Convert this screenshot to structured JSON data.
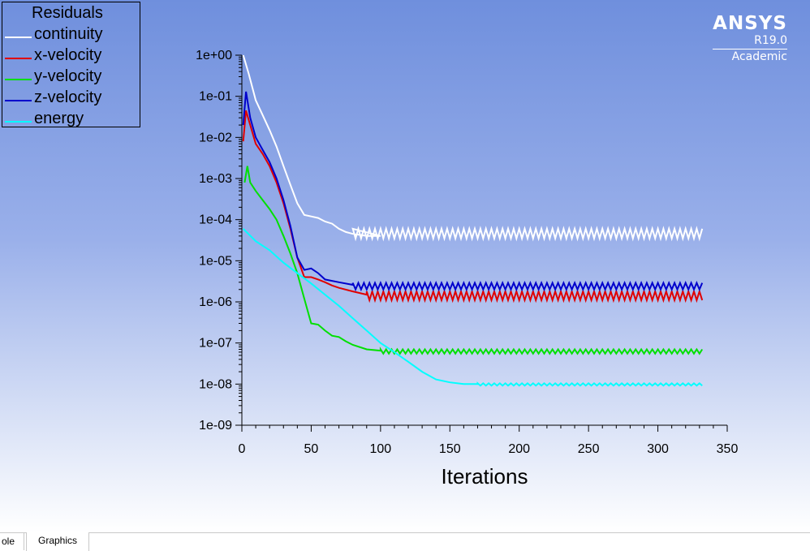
{
  "chart_data": {
    "type": "line",
    "title": "",
    "xlabel": "Iterations",
    "ylabel": "",
    "xlim": [
      0,
      350
    ],
    "ylim": [
      1e-09,
      1
    ],
    "yscale": "log",
    "x_ticks": [
      0,
      50,
      100,
      150,
      200,
      250,
      300,
      350
    ],
    "y_ticks": [
      "1e+00",
      "1e-01",
      "1e-02",
      "1e-03",
      "1e-04",
      "1e-05",
      "1e-06",
      "1e-07",
      "1e-08",
      "1e-09"
    ],
    "legend_title": "Residuals",
    "legend_position": "top-left",
    "grid": false,
    "series": [
      {
        "name": "continuity",
        "color": "#ffffff",
        "points": [
          [
            1,
            1.0
          ],
          [
            5,
            0.35
          ],
          [
            10,
            0.08
          ],
          [
            15,
            0.035
          ],
          [
            20,
            0.015
          ],
          [
            25,
            0.006
          ],
          [
            30,
            0.002
          ],
          [
            35,
            0.0007
          ],
          [
            40,
            0.00025
          ],
          [
            45,
            0.00013
          ],
          [
            50,
            0.00012
          ],
          [
            55,
            0.00011
          ],
          [
            60,
            9e-05
          ],
          [
            65,
            8e-05
          ],
          [
            70,
            6e-05
          ],
          [
            75,
            5e-05
          ],
          [
            80,
            4.5e-05
          ],
          [
            90,
            4e-05
          ],
          [
            100,
            4e-05
          ]
        ],
        "oscillation": {
          "from": 80,
          "to": 333,
          "period": 4,
          "low": 3.5e-05,
          "high": 6e-05
        }
      },
      {
        "name": "x-velocity",
        "color": "#e00000",
        "points": [
          [
            1,
            0.008
          ],
          [
            3,
            0.045
          ],
          [
            6,
            0.02
          ],
          [
            10,
            0.007
          ],
          [
            15,
            0.004
          ],
          [
            20,
            0.002
          ],
          [
            25,
            0.0008
          ],
          [
            30,
            0.00025
          ],
          [
            35,
            6e-05
          ],
          [
            40,
            1.2e-05
          ],
          [
            45,
            4e-06
          ],
          [
            50,
            4e-06
          ],
          [
            55,
            3.5e-06
          ],
          [
            60,
            3e-06
          ],
          [
            65,
            2.5e-06
          ],
          [
            70,
            2.2e-06
          ],
          [
            80,
            1.8e-06
          ],
          [
            90,
            1.5e-06
          ]
        ],
        "oscillation": {
          "from": 90,
          "to": 333,
          "period": 4,
          "low": 1.1e-06,
          "high": 1.8e-06
        }
      },
      {
        "name": "y-velocity",
        "color": "#00e000",
        "points": [
          [
            2,
            0.0008
          ],
          [
            4,
            0.002
          ],
          [
            6,
            0.0008
          ],
          [
            10,
            0.0005
          ],
          [
            15,
            0.0003
          ],
          [
            20,
            0.00018
          ],
          [
            25,
            0.0001
          ],
          [
            30,
            4e-05
          ],
          [
            35,
            1.5e-05
          ],
          [
            40,
            5e-06
          ],
          [
            45,
            1.2e-06
          ],
          [
            50,
            3e-07
          ],
          [
            55,
            2.8e-07
          ],
          [
            60,
            2e-07
          ],
          [
            65,
            1.5e-07
          ],
          [
            70,
            1.4e-07
          ],
          [
            75,
            1.1e-07
          ],
          [
            80,
            9e-08
          ],
          [
            90,
            7e-08
          ],
          [
            100,
            6.5e-08
          ]
        ],
        "oscillation": {
          "from": 100,
          "to": 333,
          "period": 4,
          "low": 5.5e-08,
          "high": 7e-08
        }
      },
      {
        "name": "z-velocity",
        "color": "#0000cc",
        "points": [
          [
            1,
            0.02
          ],
          [
            3,
            0.13
          ],
          [
            6,
            0.03
          ],
          [
            10,
            0.01
          ],
          [
            15,
            0.005
          ],
          [
            20,
            0.0025
          ],
          [
            25,
            0.001
          ],
          [
            30,
            0.0003
          ],
          [
            35,
            7e-05
          ],
          [
            40,
            1.2e-05
          ],
          [
            45,
            6e-06
          ],
          [
            50,
            6.5e-06
          ],
          [
            55,
            5e-06
          ],
          [
            60,
            3.5e-06
          ],
          [
            70,
            3e-06
          ],
          [
            80,
            2.6e-06
          ]
        ],
        "oscillation": {
          "from": 80,
          "to": 333,
          "period": 4,
          "low": 2e-06,
          "high": 2.9e-06
        }
      },
      {
        "name": "energy",
        "color": "#00ffff",
        "points": [
          [
            1,
            6e-05
          ],
          [
            10,
            3e-05
          ],
          [
            20,
            1.8e-05
          ],
          [
            30,
            9e-06
          ],
          [
            40,
            5e-06
          ],
          [
            50,
            2.8e-06
          ],
          [
            60,
            1.5e-06
          ],
          [
            70,
            8e-07
          ],
          [
            80,
            4e-07
          ],
          [
            90,
            2e-07
          ],
          [
            100,
            1e-07
          ],
          [
            110,
            6e-08
          ],
          [
            120,
            3.5e-08
          ],
          [
            130,
            2e-08
          ],
          [
            140,
            1.3e-08
          ],
          [
            150,
            1.1e-08
          ],
          [
            160,
            1e-08
          ],
          [
            170,
            1e-08
          ]
        ],
        "oscillation": {
          "from": 170,
          "to": 333,
          "period": 4,
          "low": 9.2e-09,
          "high": 1.05e-08
        }
      }
    ]
  },
  "brand": {
    "name": "ANSYS",
    "version": "R19.0",
    "edition": "Academic"
  },
  "tabs": [
    {
      "label": "ole"
    },
    {
      "label": "Graphics"
    }
  ],
  "colors": {
    "background_top": "#6f8fdd",
    "background_bottom": "#ffffff"
  }
}
